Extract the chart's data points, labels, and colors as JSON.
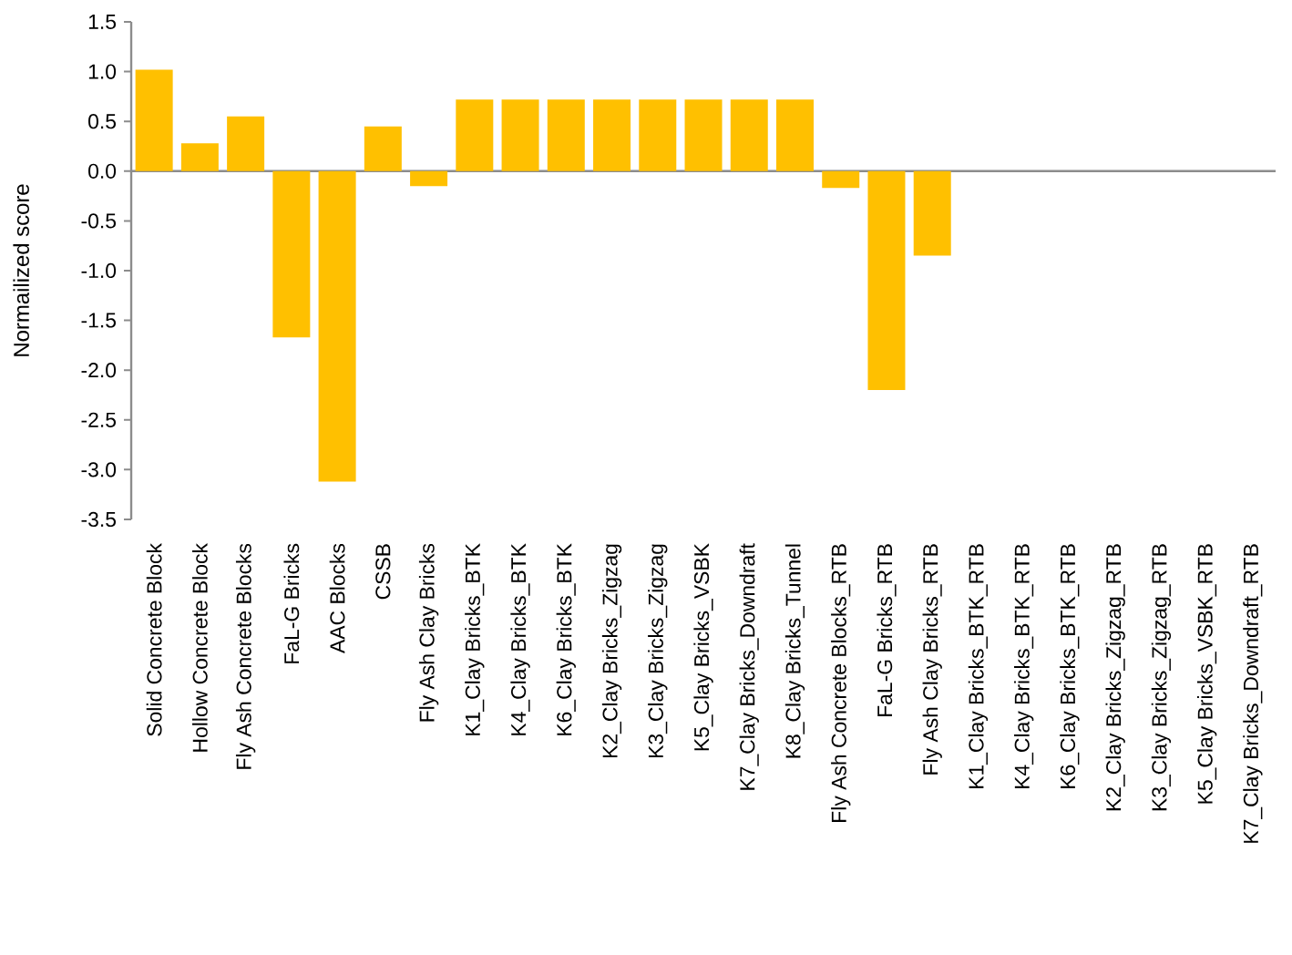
{
  "chart_data": {
    "type": "bar",
    "ylabel": "Normailized score",
    "color": "#ffc000",
    "categories": [
      "Solid Concrete Block",
      "Hollow Concrete Block",
      "Fly Ash Concrete Blocks",
      "FaL-G Bricks",
      "AAC Blocks",
      "CSSB",
      "Fly Ash Clay Bricks",
      "K1_Clay Bricks_BTK",
      "K4_Clay Bricks_BTK",
      "K6_Clay Bricks_BTK",
      "K2_Clay Bricks_Zigzag",
      "K3_Clay Bricks_Zigzag",
      "K5_Clay Bricks_VSBK",
      "K7_Clay Bricks_Downdraft",
      "K8_Clay Bricks_Tunnel",
      "Fly Ash Concrete Blocks_RTB",
      "FaL-G Bricks_RTB",
      "Fly Ash Clay Bricks_RTB",
      "K1_Clay Bricks_BTK_RTB",
      "K4_Clay Bricks_BTK_RTB",
      "K6_Clay Bricks_BTK_RTB",
      "K2_Clay Bricks_Zigzag_RTB",
      "K3_Clay Bricks_Zigzag_RTB",
      "K5_Clay Bricks_VSBK_RTB",
      "K7_Clay Bricks_Downdraft_RTB"
    ],
    "values": [
      1.02,
      0.28,
      0.55,
      -1.67,
      -3.12,
      0.45,
      -0.15,
      0.72,
      0.72,
      0.72,
      0.72,
      0.72,
      0.72,
      0.72,
      0.72,
      -0.17,
      -2.2,
      -0.85,
      null,
      null,
      null,
      null,
      null,
      null,
      null
    ],
    "ylim": [
      -3.5,
      1.5
    ],
    "yticks": [
      {
        "value": 1.5,
        "label": "1.5"
      },
      {
        "value": 1.0,
        "label": "1.0"
      },
      {
        "value": 0.5,
        "label": "0.5"
      },
      {
        "value": 0.0,
        "label": "0.0"
      },
      {
        "value": -0.5,
        "label": "-0.5"
      },
      {
        "value": -1.0,
        "label": "-1.0"
      },
      {
        "value": -1.5,
        "label": "-1.5"
      },
      {
        "value": -2.0,
        "label": "-2.0"
      },
      {
        "value": -2.5,
        "label": "-2.5"
      },
      {
        "value": -3.0,
        "label": "-3.0"
      },
      {
        "value": -3.5,
        "label": "-3.5"
      }
    ],
    "tick_labels": true
  }
}
